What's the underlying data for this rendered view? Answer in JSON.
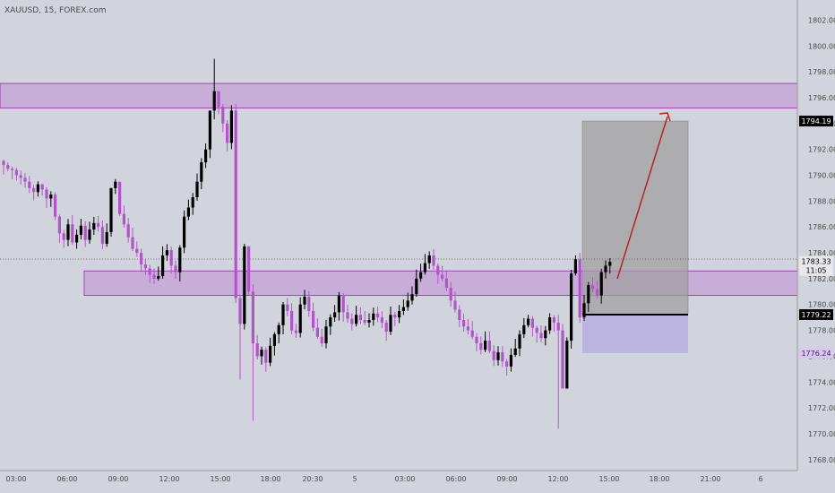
{
  "symbol_label": "XAUUSD, 15, FOREX.com",
  "colors": {
    "background": "#d1d4dc",
    "candle_up": "#000000",
    "candle_down": "#b255c9",
    "zone_fill": "#c4a0d8",
    "zone_border": "#9c27b0",
    "stop_fill": "#b8aee0",
    "target_fill": "#a0a0a0",
    "arrow": "#b71c1c"
  },
  "chart_data": {
    "type": "candlestick",
    "timeframe": "15",
    "ylim": [
      1767.5,
      1803.0
    ],
    "y_ticks": [
      "1802.00",
      "1800.00",
      "1798.00",
      "1796.00",
      "1794.00",
      "1792.00",
      "1790.00",
      "1788.00",
      "1786.00",
      "1784.00",
      "1782.00",
      "1780.00",
      "1778.00",
      "1776.00",
      "1774.00",
      "1772.00",
      "1770.00",
      "1768.00"
    ],
    "x_ticks": [
      "03:00",
      "06:00",
      "09:00",
      "12:00",
      "15:00",
      "18:00",
      "20:30",
      "5",
      "03:00",
      "06:00",
      "09:00",
      "12:00",
      "15:00",
      "18:00",
      "21:00",
      "6"
    ],
    "current_price": "1783.33",
    "countdown": "11:05",
    "price_tags": [
      {
        "label": "1794.19",
        "price": 1794.19,
        "style": "dark"
      },
      {
        "label": "1779.22",
        "price": 1779.22,
        "style": "dark"
      },
      {
        "label": "1776.24",
        "price": 1776.24,
        "style": "purple"
      }
    ],
    "zones": [
      {
        "top": 1797.1,
        "bottom": 1795.2
      },
      {
        "top": 1782.6,
        "bottom": 1780.7
      }
    ],
    "position": {
      "entry": 1779.22,
      "target": 1794.19,
      "stop": 1776.24
    },
    "closes": [
      1790.8,
      1790.5,
      1790.4,
      1790.0,
      1789.8,
      1789.5,
      1789.0,
      1788.7,
      1789.3,
      1788.9,
      1788.2,
      1788.5,
      1786.8,
      1785.5,
      1785.0,
      1786.2,
      1784.8,
      1785.4,
      1786.1,
      1785.0,
      1785.8,
      1786.3,
      1786.0,
      1784.7,
      1785.6,
      1789.0,
      1789.5,
      1787.0,
      1786.2,
      1785.2,
      1784.3,
      1784.0,
      1783.1,
      1782.8,
      1782.3,
      1782.0,
      1782.2,
      1783.8,
      1784.2,
      1783.0,
      1782.5,
      1784.4,
      1786.8,
      1787.5,
      1788.3,
      1789.5,
      1791.0,
      1792.0,
      1795.0,
      1796.5,
      1795.3,
      1794.0,
      1792.5,
      1795.0,
      1780.5,
      1778.5,
      1784.5,
      1781.0,
      1777.0,
      1776.0,
      1776.5,
      1775.5,
      1776.8,
      1777.7,
      1778.4,
      1780.0,
      1779.5,
      1778.0,
      1777.8,
      1780.0,
      1780.6,
      1779.5,
      1778.2,
      1777.5,
      1777.0,
      1778.3,
      1779.0,
      1779.4,
      1780.7,
      1779.4,
      1778.9,
      1778.5,
      1779.2,
      1778.8,
      1778.6,
      1778.8,
      1779.3,
      1779.0,
      1778.6,
      1777.9,
      1779.2,
      1779.0,
      1779.5,
      1779.8,
      1780.3,
      1780.8,
      1782.0,
      1782.5,
      1783.2,
      1783.8,
      1783.0,
      1782.3,
      1782.0,
      1781.3,
      1780.3,
      1779.6,
      1778.8,
      1778.3,
      1778.0,
      1777.5,
      1777.0,
      1776.5,
      1777.2,
      1776.4,
      1775.7,
      1776.3,
      1775.6,
      1775.2,
      1776.1,
      1776.6,
      1777.7,
      1778.4,
      1778.9,
      1778.2,
      1777.8,
      1777.4,
      1778.0,
      1779.0,
      1778.6,
      1778.0,
      1773.5,
      1777.2,
      1782.4,
      1783.5,
      1779.0,
      1780.1,
      1781.5,
      1781.2,
      1780.7,
      1782.5,
      1783.0,
      1783.3
    ],
    "bands": [
      {
        "t": 0,
        "lo": 1788,
        "hi": 1791
      },
      {
        "t": 12,
        "lo": 1785,
        "hi": 1788.5
      },
      {
        "t": 22,
        "lo": 1783,
        "hi": 1786.8
      },
      {
        "t": 26,
        "lo": 1783.5,
        "hi": 1789.5
      },
      {
        "t": 34,
        "lo": 1781,
        "hi": 1787.5
      },
      {
        "t": 40,
        "lo": 1781.3,
        "hi": 1785
      },
      {
        "t": 46,
        "lo": 1785,
        "hi": 1792.5
      },
      {
        "t": 52,
        "lo": 1790,
        "hi": 1798
      },
      {
        "t": 54,
        "lo": 1776,
        "hi": 1795.5
      },
      {
        "t": 56,
        "lo": 1773.5,
        "hi": 1784.5
      },
      {
        "t": 60,
        "lo": 1771.5,
        "hi": 1779
      },
      {
        "t": 68,
        "lo": 1775.5,
        "hi": 1781.4
      },
      {
        "t": 78,
        "lo": 1776.5,
        "hi": 1781
      },
      {
        "t": 86,
        "lo": 1776,
        "hi": 1780.5
      },
      {
        "t": 94,
        "lo": 1778.5,
        "hi": 1783
      },
      {
        "t": 100,
        "lo": 1782,
        "hi": 1784.1
      },
      {
        "t": 108,
        "lo": 1776.5,
        "hi": 1780
      },
      {
        "t": 116,
        "lo": 1774.5,
        "hi": 1777.5
      },
      {
        "t": 124,
        "lo": 1776,
        "hi": 1779.5
      },
      {
        "t": 128,
        "lo": 1772.5,
        "hi": 1779
      },
      {
        "t": 134,
        "lo": 1778,
        "hi": 1784.5
      },
      {
        "t": 140,
        "lo": 1780,
        "hi": 1784
      }
    ]
  }
}
